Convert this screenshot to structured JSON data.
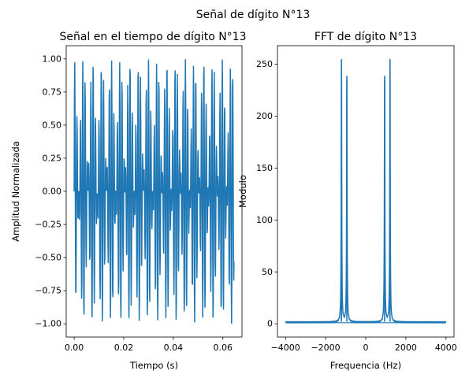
{
  "figure": {
    "suptitle": "Señal de dígito N°13"
  },
  "chart_data": [
    {
      "type": "line",
      "title": "Señal en el tiempo de dígito N°13",
      "xlabel": "Tiempo (s)",
      "ylabel": "Amplitud Normalizada",
      "xlim": [
        -0.0032,
        0.0677
      ],
      "ylim": [
        -1.1,
        1.1
      ],
      "xticks": [
        0.0,
        0.02,
        0.04,
        0.06
      ],
      "xtick_labels": [
        "0.00",
        "0.02",
        "0.04",
        "0.06"
      ],
      "yticks": [
        -1.0,
        -0.75,
        -0.5,
        -0.25,
        0.0,
        0.25,
        0.5,
        0.75,
        1.0
      ],
      "ytick_labels": [
        "−1.00",
        "−0.75",
        "−0.50",
        "−0.25",
        "0.00",
        "0.25",
        "0.50",
        "0.75",
        "1.00"
      ],
      "grid": false,
      "signal": {
        "duration_s": 0.0645,
        "sample_rate_hz": 8000,
        "tone_frequencies_hz": [
          941,
          1209
        ],
        "tone_amplitudes": [
          0.5,
          0.5
        ]
      },
      "series": [
        {
          "color": "#1f77b4"
        }
      ]
    },
    {
      "type": "line",
      "title": "FFT de dígito N°13",
      "xlabel": "Frequencia (Hz)",
      "ylabel": "Modulo",
      "xlim": [
        -4400,
        4400
      ],
      "ylim": [
        -12.8,
        268
      ],
      "xticks": [
        -4000,
        -2000,
        0,
        2000,
        4000
      ],
      "xtick_labels": [
        "−4000",
        "−2000",
        "0",
        "2000",
        "4000"
      ],
      "yticks": [
        0,
        50,
        100,
        150,
        200,
        250
      ],
      "ytick_labels": [
        "0",
        "50",
        "100",
        "150",
        "200",
        "250"
      ],
      "grid": false,
      "peaks": [
        {
          "frequency_hz": -1209,
          "magnitude": 255
        },
        {
          "frequency_hz": -941,
          "magnitude": 239
        },
        {
          "frequency_hz": 941,
          "magnitude": 239
        },
        {
          "frequency_hz": 1209,
          "magnitude": 255
        }
      ],
      "series": [
        {
          "color": "#1f77b4"
        }
      ]
    }
  ]
}
